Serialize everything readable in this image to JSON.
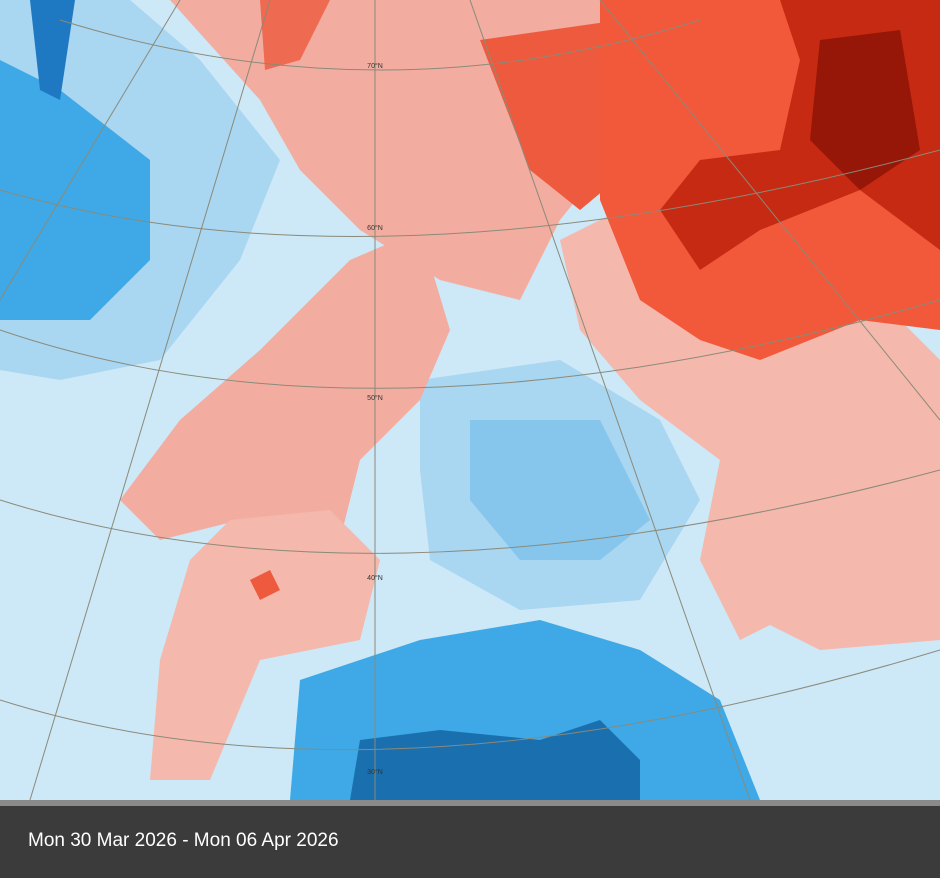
{
  "map": {
    "latitude_labels": [
      "70°N",
      "60°N",
      "50°N",
      "40°N",
      "30°N"
    ]
  },
  "caption": "Mon 30 Mar 2026 - Mon 06 Apr 2026"
}
